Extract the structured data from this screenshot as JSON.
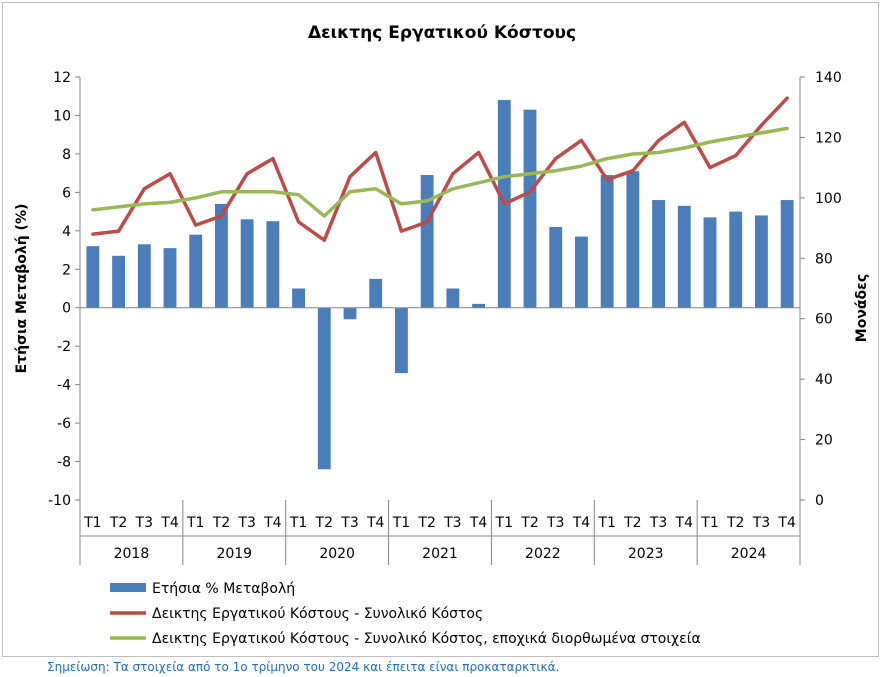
{
  "chart_data": {
    "type": "bar",
    "title": "Δεικτης Εργατικού Κόστους",
    "ylabel": "Ετήσια Μεταβολή (%)",
    "y2label": "Μονάδες",
    "ylim": [
      -10,
      12
    ],
    "y2lim": [
      0,
      140
    ],
    "yticks": [
      "-10",
      "-8",
      "-6",
      "-4",
      "-2",
      "0",
      "2",
      "4",
      "6",
      "8",
      "10",
      "12"
    ],
    "y2ticks": [
      "0",
      "20",
      "40",
      "60",
      "80",
      "100",
      "120",
      "140"
    ],
    "categories": [
      "Τ1",
      "Τ2",
      "Τ3",
      "Τ4",
      "Τ1",
      "Τ2",
      "Τ3",
      "Τ4",
      "Τ1",
      "Τ2",
      "Τ3",
      "Τ4",
      "Τ1",
      "Τ2",
      "Τ3",
      "Τ4",
      "Τ1",
      "Τ2",
      "Τ3",
      "Τ4",
      "Τ1",
      "Τ2",
      "Τ3",
      "Τ4",
      "Τ1",
      "Τ2",
      "Τ3",
      "Τ4"
    ],
    "years": [
      "2018",
      "2019",
      "2020",
      "2021",
      "2022",
      "2023",
      "2024"
    ],
    "grid": false,
    "legend_position": "bottom",
    "series": [
      {
        "name": "Ετήσια  % Μεταβολή",
        "kind": "bar",
        "axis": "left",
        "color": "#4a7ebb",
        "values": [
          3.2,
          2.7,
          3.3,
          3.1,
          3.8,
          5.4,
          4.6,
          4.5,
          1.0,
          -8.4,
          -0.6,
          1.5,
          -3.4,
          6.9,
          1.0,
          0.2,
          10.8,
          10.3,
          4.2,
          3.7,
          6.9,
          7.1,
          5.6,
          5.3,
          4.7,
          5.0,
          4.8,
          5.6
        ]
      },
      {
        "name": "Δεικτης Εργατικού Κόστους - Συνολικό Κόστος",
        "kind": "line",
        "axis": "right",
        "color": "#be4b48",
        "values": [
          88,
          89,
          103,
          108,
          91,
          94,
          108,
          113,
          92,
          86,
          107,
          115,
          89,
          92,
          108,
          115,
          98,
          102,
          113,
          119,
          106,
          109,
          119,
          125,
          110,
          114,
          124,
          133
        ]
      },
      {
        "name": "Δεικτης Εργατικού Κόστους - Συνολικό Κόστος, εποχικά διορθωμένα στοιχεία",
        "kind": "line",
        "axis": "right",
        "color": "#98b954",
        "values": [
          96,
          97,
          98,
          98.5,
          100,
          102,
          102,
          102,
          101,
          94,
          102,
          103,
          98,
          99,
          103,
          105,
          107,
          108,
          109,
          110.5,
          113,
          114.5,
          115,
          116.5,
          118.5,
          120,
          121.5,
          123
        ]
      }
    ]
  },
  "footnote": "Σημείωση: Τα στοιχεία από το 1ο τρίμηνο του 2024 και έπειτα είναι προκαταρκτικά."
}
